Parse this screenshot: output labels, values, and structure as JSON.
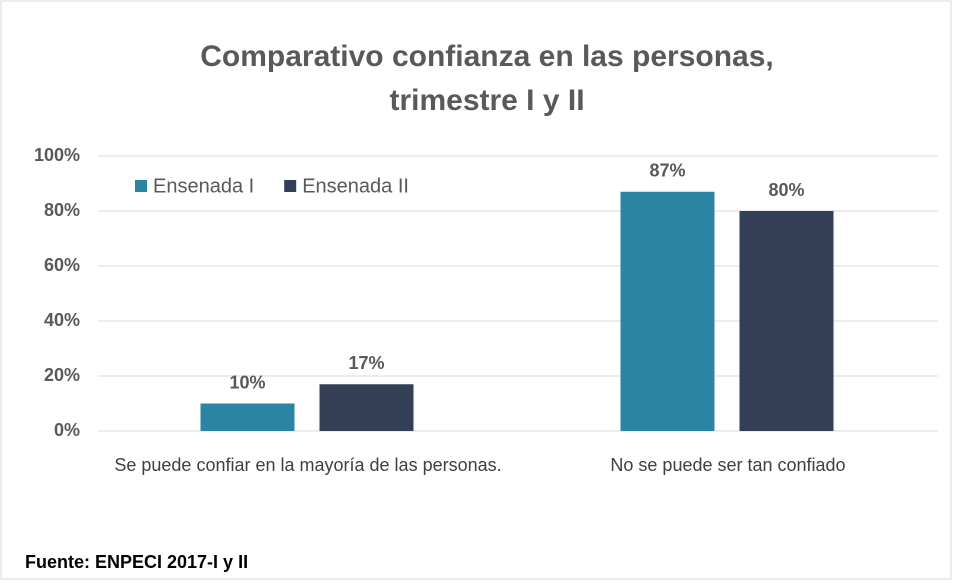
{
  "chart_data": {
    "type": "bar",
    "title": [
      "Comparativo confianza en las personas,",
      "trimestre I y II"
    ],
    "categories": [
      "Se puede confiar en la mayoría de las personas.",
      "No se puede ser tan confiado"
    ],
    "series": [
      {
        "name": "Ensenada I",
        "color": "#2a84a2",
        "values": [
          10,
          87
        ],
        "value_labels": [
          "10%",
          "87%"
        ]
      },
      {
        "name": "Ensenada II",
        "color": "#323f56",
        "values": [
          17,
          80
        ],
        "value_labels": [
          "17%",
          "80%"
        ]
      }
    ],
    "ylim": [
      0,
      100
    ],
    "yticks": [
      {
        "value": 0,
        "label": "0%"
      },
      {
        "value": 20,
        "label": "20%"
      },
      {
        "value": 40,
        "label": "40%"
      },
      {
        "value": 60,
        "label": "60%"
      },
      {
        "value": 80,
        "label": "80%"
      },
      {
        "value": 100,
        "label": "100%"
      }
    ],
    "grid": true,
    "legend": "top-left",
    "source": "Fuente: ENPECI 2017-I y II"
  }
}
